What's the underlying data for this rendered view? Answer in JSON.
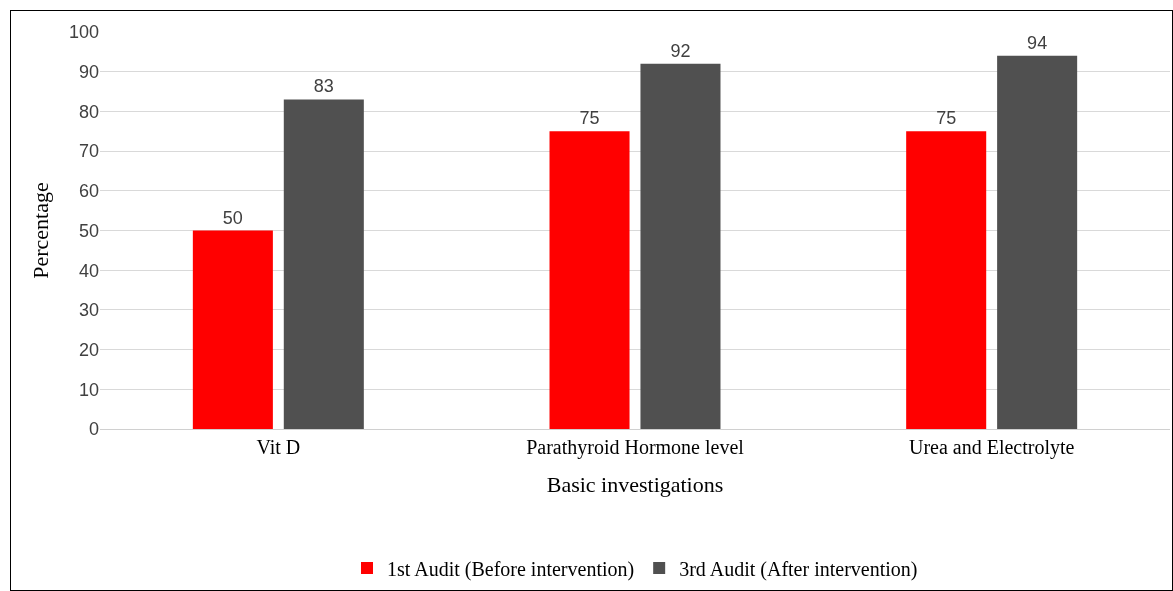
{
  "chart_data": {
    "type": "bar",
    "xlabel": "Basic investigations",
    "ylabel": "Percentage",
    "categories": [
      "Vit D",
      "Parathyroid Hormone level",
      "Urea and Electrolyte"
    ],
    "series": [
      {
        "name": "1st Audit (Before intervention)",
        "color": "#ff0000",
        "values": [
          50,
          75,
          75
        ]
      },
      {
        "name": "3rd Audit (After intervention)",
        "color": "#505050",
        "values": [
          83,
          92,
          94
        ]
      }
    ],
    "ylim": [
      0,
      100
    ],
    "yticks": [
      0,
      10,
      20,
      30,
      40,
      50,
      60,
      70,
      80,
      90,
      100
    ],
    "grid": "y",
    "legend": "bottom",
    "data_labels": true
  }
}
